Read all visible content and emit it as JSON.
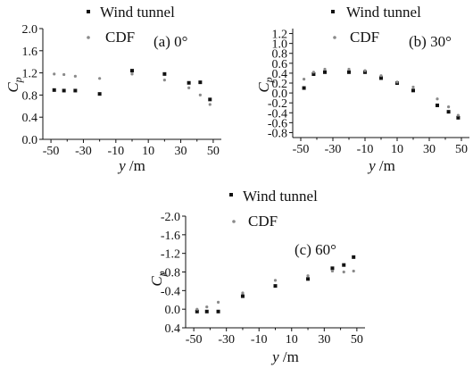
{
  "colors": {
    "wind_tunnel": "#111111",
    "cdf": "#8a8a8a",
    "axis": "#111111"
  },
  "chart_data": [
    {
      "type": "scatter",
      "panel_label": "(a) 0°",
      "xlabel_var": "y",
      "xlabel_unit": " /m",
      "ylabel_var": "C",
      "ylabel_sub": "p",
      "xlim": [
        -55,
        55
      ],
      "ylim": [
        0.0,
        2.0
      ],
      "y_inverted": false,
      "xticks": [
        -50,
        -40,
        -30,
        -20,
        -10,
        0,
        10,
        20,
        30,
        40,
        50
      ],
      "xtick_labels": [
        "-50",
        "-40",
        "-30",
        "-20",
        "-10",
        "0",
        "10",
        "20",
        "30",
        "40",
        "50"
      ],
      "yticks": [
        0.0,
        0.4,
        0.8,
        1.2,
        1.6,
        2.0
      ],
      "ytick_labels": [
        "0.0",
        "0.4",
        "0.8",
        "1.2",
        "1.6",
        "2.0"
      ],
      "legend": [
        "Wind tunnel",
        "CDF"
      ],
      "series": [
        {
          "name": "Wind tunnel",
          "marker": "square",
          "points": [
            [
              -48,
              0.89
            ],
            [
              -42,
              0.88
            ],
            [
              -35,
              0.88
            ],
            [
              -20,
              0.82
            ],
            [
              0,
              1.24
            ],
            [
              20,
              1.18
            ],
            [
              35,
              1.02
            ],
            [
              42,
              1.03
            ],
            [
              48,
              0.72
            ]
          ]
        },
        {
          "name": "CDF",
          "marker": "dot",
          "points": [
            [
              -48,
              1.18
            ],
            [
              -42,
              1.17
            ],
            [
              -35,
              1.14
            ],
            [
              -20,
              1.1
            ],
            [
              0,
              1.18
            ],
            [
              20,
              1.07
            ],
            [
              35,
              0.93
            ],
            [
              42,
              0.8
            ],
            [
              48,
              0.63
            ]
          ]
        }
      ]
    },
    {
      "type": "scatter",
      "panel_label": "(b) 30°",
      "xlabel_var": "y",
      "xlabel_unit": " /m",
      "ylabel_var": "C",
      "ylabel_sub": "p",
      "xlim": [
        -55,
        55
      ],
      "ylim": [
        -0.9,
        1.3
      ],
      "y_inverted": false,
      "xticks": [
        -50,
        -40,
        -30,
        -20,
        -10,
        0,
        10,
        20,
        30,
        40,
        50
      ],
      "xtick_labels": [
        "-50",
        "-40",
        "-30",
        "-20",
        "-10",
        "0",
        "10",
        "20",
        "30",
        "40",
        "50"
      ],
      "yticks": [
        -0.8,
        -0.6,
        -0.4,
        -0.2,
        0.0,
        0.2,
        0.4,
        0.6,
        0.8,
        1.0,
        1.2
      ],
      "ytick_labels": [
        "-0.8",
        "-0.6",
        "-0.4",
        "-0.2",
        "0.0",
        "0.2",
        "0.4",
        "0.6",
        "0.8",
        "1.0",
        "1.2"
      ],
      "legend": [
        "Wind tunnel",
        "CDF"
      ],
      "series": [
        {
          "name": "Wind tunnel",
          "marker": "square",
          "points": [
            [
              -48,
              0.1
            ],
            [
              -42,
              0.38
            ],
            [
              -35,
              0.42
            ],
            [
              -20,
              0.42
            ],
            [
              -10,
              0.42
            ],
            [
              0,
              0.3
            ],
            [
              10,
              0.2
            ],
            [
              20,
              0.05
            ],
            [
              35,
              -0.25
            ],
            [
              42,
              -0.38
            ],
            [
              48,
              -0.5
            ]
          ]
        },
        {
          "name": "CDF",
          "marker": "dot",
          "points": [
            [
              -48,
              0.28
            ],
            [
              -42,
              0.42
            ],
            [
              -35,
              0.48
            ],
            [
              -20,
              0.48
            ],
            [
              -10,
              0.45
            ],
            [
              0,
              0.35
            ],
            [
              10,
              0.22
            ],
            [
              20,
              0.12
            ],
            [
              35,
              -0.12
            ],
            [
              42,
              -0.28
            ],
            [
              48,
              -0.45
            ]
          ]
        }
      ]
    },
    {
      "type": "scatter",
      "panel_label": "(c) 60°",
      "xlabel_var": "y",
      "xlabel_unit": " /m",
      "ylabel_var": "C",
      "ylabel_sub": "p",
      "xlim": [
        -55,
        55
      ],
      "ylim": [
        -2.0,
        0.4
      ],
      "y_inverted": true,
      "xticks": [
        -50,
        -40,
        -30,
        -20,
        -10,
        0,
        10,
        20,
        30,
        40,
        50
      ],
      "xtick_labels": [
        "-50",
        "-40",
        "-30",
        "-20",
        "-10",
        "0",
        "10",
        "20",
        "30",
        "40",
        "50"
      ],
      "yticks": [
        -2.0,
        -1.6,
        -1.2,
        -0.8,
        -0.4,
        0.0,
        0.4
      ],
      "ytick_labels": [
        "-2.0",
        "-1.6",
        "-1.2",
        "-0.8",
        "-0.4",
        "0.0",
        "0.4"
      ],
      "legend": [
        "Wind tunnel",
        "CDF"
      ],
      "series": [
        {
          "name": "Wind tunnel",
          "marker": "square",
          "points": [
            [
              -48,
              0.05
            ],
            [
              -42,
              0.05
            ],
            [
              -35,
              0.05
            ],
            [
              -20,
              -0.28
            ],
            [
              0,
              -0.5
            ],
            [
              20,
              -0.65
            ],
            [
              35,
              -0.88
            ],
            [
              42,
              -0.95
            ],
            [
              48,
              -1.12
            ]
          ]
        },
        {
          "name": "CDF",
          "marker": "dot",
          "points": [
            [
              -48,
              0.0
            ],
            [
              -42,
              -0.05
            ],
            [
              -35,
              -0.15
            ],
            [
              -20,
              -0.35
            ],
            [
              0,
              -0.62
            ],
            [
              20,
              -0.72
            ],
            [
              35,
              -0.82
            ],
            [
              42,
              -0.8
            ],
            [
              48,
              -0.82
            ]
          ]
        }
      ]
    }
  ]
}
